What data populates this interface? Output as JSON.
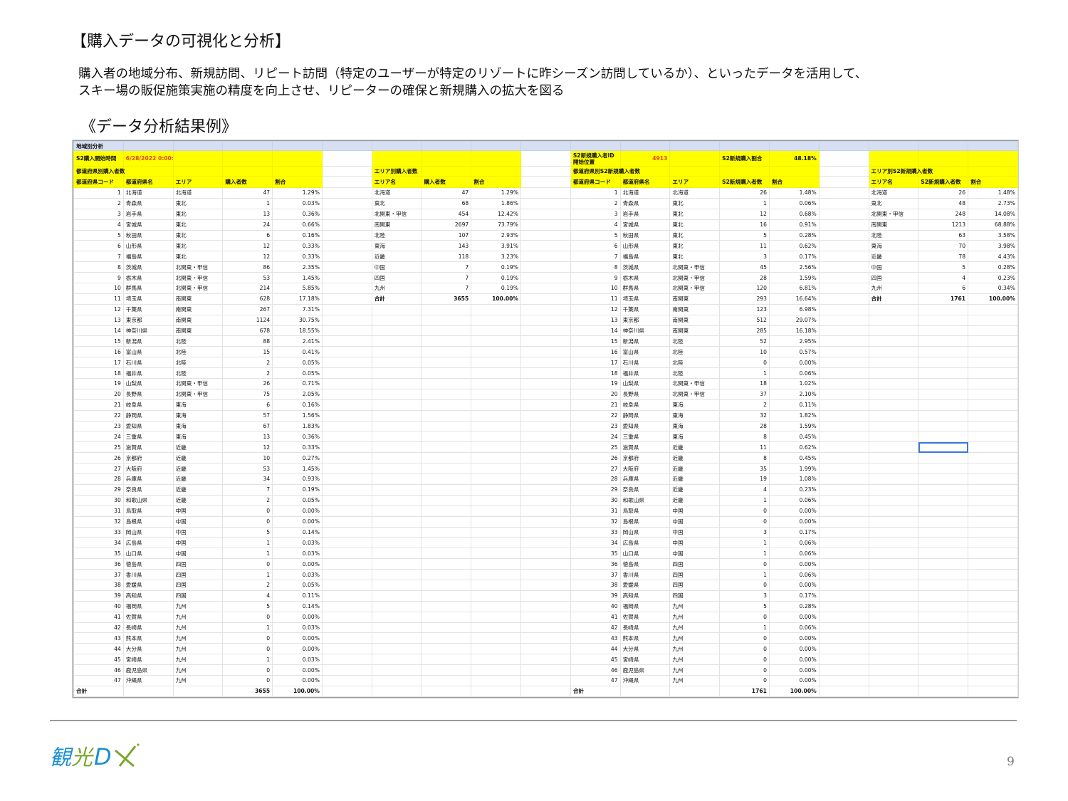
{
  "slide": {
    "title": "【購入データの可視化と分析】",
    "description_line1": "購入者の地域分布、新規訪問、リピート訪問（特定のユーザーが特定のリゾートに昨シーズン訪問しているか）、といったデータを活用して、",
    "description_line2": "スキー場の販促施策実施の精度を向上させ、リピーターの確保と新規購入の拡大を図る",
    "subtitle": "《データ分析結果例》",
    "logo_text": "観光DX",
    "page_number": "9"
  },
  "colors": {
    "header_fill": "#ffff00",
    "band_fill": "#d6e0f2",
    "highlight_text": "#e2461b",
    "logo_blue": "#1a8fd0",
    "logo_green": "#7aa62a"
  },
  "sheet": {
    "title": "地域別分析"
  },
  "t1": {
    "start_label": "S2購入開始時間",
    "start_value": "6/28/2022 0:00:(",
    "section": "都道府県別購入者数",
    "headers": [
      "都道府県コード",
      "都道府県名",
      "エリア",
      "購入者数",
      "割合"
    ],
    "total": [
      "合計",
      "3655",
      "100.00%"
    ]
  },
  "t3": {
    "id_label_1": "S2新規購入者ID",
    "id_label_2": "開始位置",
    "id_value": "4913",
    "ratio_label": "S2新規購入割合",
    "ratio_value": "48.18%",
    "section": "都道府県別S2新規購入者数",
    "headers": [
      "都道府県コード",
      "都道府県名",
      "エリア",
      "S2新規購入者数",
      "割合"
    ],
    "total": [
      "合計",
      "1761",
      "100.00%"
    ]
  },
  "prefectures": [
    [
      "1",
      "北海道",
      "北海道",
      "47",
      "1.29%",
      "26",
      "1.48%"
    ],
    [
      "2",
      "青森県",
      "東北",
      "1",
      "0.03%",
      "1",
      "0.06%"
    ],
    [
      "3",
      "岩手県",
      "東北",
      "13",
      "0.36%",
      "12",
      "0.68%"
    ],
    [
      "4",
      "宮城県",
      "東北",
      "24",
      "0.66%",
      "16",
      "0.91%"
    ],
    [
      "5",
      "秋田県",
      "東北",
      "6",
      "0.16%",
      "5",
      "0.28%"
    ],
    [
      "6",
      "山形県",
      "東北",
      "12",
      "0.33%",
      "11",
      "0.62%"
    ],
    [
      "7",
      "福島県",
      "東北",
      "12",
      "0.33%",
      "3",
      "0.17%"
    ],
    [
      "8",
      "茨城県",
      "北関東・甲信",
      "86",
      "2.35%",
      "45",
      "2.56%"
    ],
    [
      "9",
      "栃木県",
      "北関東・甲信",
      "53",
      "1.45%",
      "28",
      "1.59%"
    ],
    [
      "10",
      "群馬県",
      "北関東・甲信",
      "214",
      "5.85%",
      "120",
      "6.81%"
    ],
    [
      "11",
      "埼玉県",
      "南関東",
      "628",
      "17.18%",
      "293",
      "16.64%"
    ],
    [
      "12",
      "千葉県",
      "南関東",
      "267",
      "7.31%",
      "123",
      "6.98%"
    ],
    [
      "13",
      "東京都",
      "南関東",
      "1124",
      "30.75%",
      "512",
      "29.07%"
    ],
    [
      "14",
      "神奈川県",
      "南関東",
      "678",
      "18.55%",
      "285",
      "16.18%"
    ],
    [
      "15",
      "新潟県",
      "北陸",
      "88",
      "2.41%",
      "52",
      "2.95%"
    ],
    [
      "16",
      "富山県",
      "北陸",
      "15",
      "0.41%",
      "10",
      "0.57%"
    ],
    [
      "17",
      "石川県",
      "北陸",
      "2",
      "0.05%",
      "0",
      "0.00%"
    ],
    [
      "18",
      "福井県",
      "北陸",
      "2",
      "0.05%",
      "1",
      "0.06%"
    ],
    [
      "19",
      "山梨県",
      "北関東・甲信",
      "26",
      "0.71%",
      "18",
      "1.02%"
    ],
    [
      "20",
      "長野県",
      "北関東・甲信",
      "75",
      "2.05%",
      "37",
      "2.10%"
    ],
    [
      "21",
      "岐阜県",
      "東海",
      "6",
      "0.16%",
      "2",
      "0.11%"
    ],
    [
      "22",
      "静岡県",
      "東海",
      "57",
      "1.56%",
      "32",
      "1.82%"
    ],
    [
      "23",
      "愛知県",
      "東海",
      "67",
      "1.83%",
      "28",
      "1.59%"
    ],
    [
      "24",
      "三重県",
      "東海",
      "13",
      "0.36%",
      "8",
      "0.45%"
    ],
    [
      "25",
      "滋賀県",
      "近畿",
      "12",
      "0.33%",
      "11",
      "0.62%"
    ],
    [
      "26",
      "京都府",
      "近畿",
      "10",
      "0.27%",
      "8",
      "0.45%"
    ],
    [
      "27",
      "大阪府",
      "近畿",
      "53",
      "1.45%",
      "35",
      "1.99%"
    ],
    [
      "28",
      "兵庫県",
      "近畿",
      "34",
      "0.93%",
      "19",
      "1.08%"
    ],
    [
      "29",
      "奈良県",
      "近畿",
      "7",
      "0.19%",
      "4",
      "0.23%"
    ],
    [
      "30",
      "和歌山県",
      "近畿",
      "2",
      "0.05%",
      "1",
      "0.06%"
    ],
    [
      "31",
      "鳥取県",
      "中国",
      "0",
      "0.00%",
      "0",
      "0.00%"
    ],
    [
      "32",
      "島根県",
      "中国",
      "0",
      "0.00%",
      "0",
      "0.00%"
    ],
    [
      "33",
      "岡山県",
      "中国",
      "5",
      "0.14%",
      "3",
      "0.17%"
    ],
    [
      "34",
      "広島県",
      "中国",
      "1",
      "0.03%",
      "1",
      "0.06%"
    ],
    [
      "35",
      "山口県",
      "中国",
      "1",
      "0.03%",
      "1",
      "0.06%"
    ],
    [
      "36",
      "徳島県",
      "四国",
      "0",
      "0.00%",
      "0",
      "0.00%"
    ],
    [
      "37",
      "香川県",
      "四国",
      "1",
      "0.03%",
      "1",
      "0.06%"
    ],
    [
      "38",
      "愛媛県",
      "四国",
      "2",
      "0.05%",
      "0",
      "0.00%"
    ],
    [
      "39",
      "高知県",
      "四国",
      "4",
      "0.11%",
      "3",
      "0.17%"
    ],
    [
      "40",
      "福岡県",
      "九州",
      "5",
      "0.14%",
      "5",
      "0.28%"
    ],
    [
      "41",
      "佐賀県",
      "九州",
      "0",
      "0.00%",
      "0",
      "0.00%"
    ],
    [
      "42",
      "長崎県",
      "九州",
      "1",
      "0.03%",
      "1",
      "0.06%"
    ],
    [
      "43",
      "熊本県",
      "九州",
      "0",
      "0.00%",
      "0",
      "0.00%"
    ],
    [
      "44",
      "大分県",
      "九州",
      "0",
      "0.00%",
      "0",
      "0.00%"
    ],
    [
      "45",
      "宮崎県",
      "九州",
      "1",
      "0.03%",
      "0",
      "0.00%"
    ],
    [
      "46",
      "鹿児島県",
      "九州",
      "0",
      "0.00%",
      "0",
      "0.00%"
    ],
    [
      "47",
      "沖縄県",
      "九州",
      "0",
      "0.00%",
      "0",
      "0.00%"
    ]
  ],
  "t2": {
    "section": "エリア別購入者数",
    "headers": [
      "エリア名",
      "購入者数",
      "割合"
    ],
    "rows": [
      [
        "北海道",
        "47",
        "1.29%"
      ],
      [
        "東北",
        "68",
        "1.86%"
      ],
      [
        "北関東・甲信",
        "454",
        "12.42%"
      ],
      [
        "南関東",
        "2697",
        "73.79%"
      ],
      [
        "北陸",
        "107",
        "2.93%"
      ],
      [
        "東海",
        "143",
        "3.91%"
      ],
      [
        "近畿",
        "118",
        "3.23%"
      ],
      [
        "中国",
        "7",
        "0.19%"
      ],
      [
        "四国",
        "7",
        "0.19%"
      ],
      [
        "九州",
        "7",
        "0.19%"
      ]
    ],
    "total": [
      "合計",
      "3655",
      "100.00%"
    ]
  },
  "t4": {
    "section": "エリア別S2新規購入者数",
    "headers": [
      "エリア名",
      "S2新規購入者数",
      "割合"
    ],
    "rows": [
      [
        "北海道",
        "26",
        "1.48%"
      ],
      [
        "東北",
        "48",
        "2.73%"
      ],
      [
        "北関東・甲信",
        "248",
        "14.08%"
      ],
      [
        "南関東",
        "1213",
        "68.88%"
      ],
      [
        "北陸",
        "63",
        "3.58%"
      ],
      [
        "東海",
        "70",
        "3.98%"
      ],
      [
        "近畿",
        "78",
        "4.43%"
      ],
      [
        "中国",
        "5",
        "0.28%"
      ],
      [
        "四国",
        "4",
        "0.23%"
      ],
      [
        "九州",
        "6",
        "0.34%"
      ]
    ],
    "total": [
      "合計",
      "1761",
      "100.00%"
    ]
  }
}
